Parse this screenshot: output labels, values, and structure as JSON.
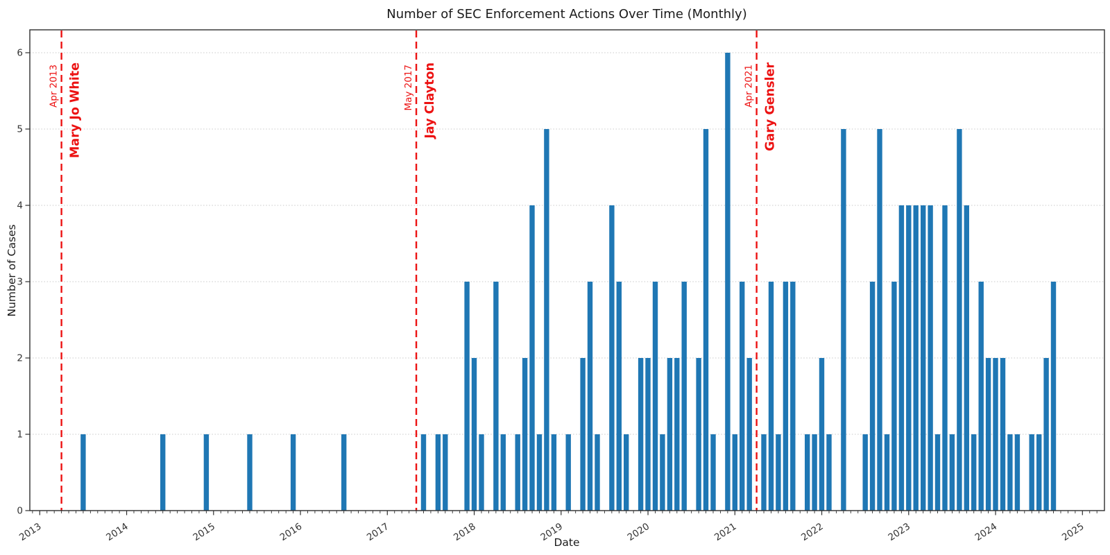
{
  "chart_data": {
    "type": "bar",
    "title": "Number of SEC Enforcement Actions Over Time (Monthly)",
    "xlabel": "Date",
    "ylabel": "Number of Cases",
    "bar_color": "#1f77b4",
    "annotation_color": "#ec1212",
    "grid_color": "#c9c9c9",
    "axis_color": "#2e2e2e",
    "grid": "horizontal-dotted",
    "legend": "none",
    "ylim": [
      0,
      6.3
    ],
    "yticks": [
      0,
      1,
      2,
      3,
      4,
      5,
      6
    ],
    "xtick_years": [
      2013,
      2014,
      2015,
      2016,
      2017,
      2018,
      2019,
      2020,
      2021,
      2022,
      2023,
      2024,
      2025
    ],
    "x_minor_ticks": "monthly",
    "monthly_counts": {
      "2013-07": 1,
      "2014-06": 1,
      "2014-12": 1,
      "2015-06": 1,
      "2015-12": 1,
      "2016-07": 1,
      "2017-06": 1,
      "2017-08": 1,
      "2017-09": 1,
      "2017-12": 3,
      "2018-01": 2,
      "2018-02": 1,
      "2018-04": 3,
      "2018-05": 1,
      "2018-07": 1,
      "2018-08": 2,
      "2018-09": 4,
      "2018-10": 1,
      "2018-11": 5,
      "2018-12": 1,
      "2019-02": 1,
      "2019-04": 2,
      "2019-05": 3,
      "2019-06": 1,
      "2019-08": 4,
      "2019-09": 3,
      "2019-10": 1,
      "2019-12": 2,
      "2020-01": 2,
      "2020-02": 3,
      "2020-03": 1,
      "2020-04": 2,
      "2020-05": 2,
      "2020-06": 3,
      "2020-08": 2,
      "2020-09": 5,
      "2020-10": 1,
      "2020-12": 6,
      "2021-01": 1,
      "2021-02": 3,
      "2021-03": 2,
      "2021-05": 1,
      "2021-06": 3,
      "2021-07": 1,
      "2021-08": 3,
      "2021-09": 3,
      "2021-11": 1,
      "2021-12": 1,
      "2022-01": 2,
      "2022-02": 1,
      "2022-04": 5,
      "2022-07": 1,
      "2022-08": 3,
      "2022-09": 5,
      "2022-10": 1,
      "2022-11": 3,
      "2022-12": 4,
      "2023-01": 4,
      "2023-02": 4,
      "2023-03": 4,
      "2023-04": 4,
      "2023-05": 1,
      "2023-06": 4,
      "2023-07": 1,
      "2023-08": 5,
      "2023-09": 4,
      "2023-10": 1,
      "2023-11": 3,
      "2023-12": 2,
      "2024-01": 2,
      "2024-02": 2,
      "2024-03": 1,
      "2024-04": 1,
      "2024-06": 1,
      "2024-07": 1,
      "2024-08": 2,
      "2024-09": 3
    },
    "annotations": [
      {
        "date_label": "Apr 2013",
        "name": "Mary Jo White",
        "month": "2013-04"
      },
      {
        "date_label": "May 2017",
        "name": "Jay Clayton",
        "month": "2017-05"
      },
      {
        "date_label": "Apr 2021",
        "name": "Gary Gensler",
        "month": "2021-04"
      }
    ]
  }
}
